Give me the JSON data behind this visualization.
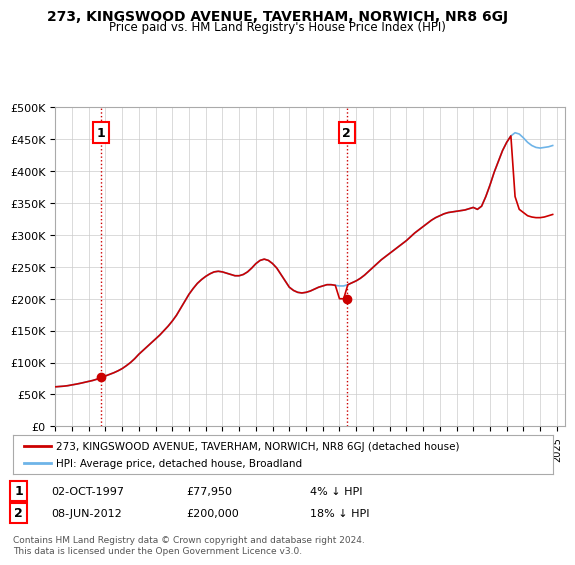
{
  "title": "273, KINGSWOOD AVENUE, TAVERHAM, NORWICH, NR8 6GJ",
  "subtitle": "Price paid vs. HM Land Registry's House Price Index (HPI)",
  "ylabel_ticks": [
    "£0",
    "£50K",
    "£100K",
    "£150K",
    "£200K",
    "£250K",
    "£300K",
    "£350K",
    "£400K",
    "£450K",
    "£500K"
  ],
  "ytick_values": [
    0,
    50000,
    100000,
    150000,
    200000,
    250000,
    300000,
    350000,
    400000,
    450000,
    500000
  ],
  "ylim": [
    0,
    500000
  ],
  "xlim_start": 1995.0,
  "xlim_end": 2025.5,
  "sale1_x": 1997.75,
  "sale1_y": 77950,
  "sale1_label": "1",
  "sale1_date": "02-OCT-1997",
  "sale1_price": "£77,950",
  "sale1_hpi": "4% ↓ HPI",
  "sale2_x": 2012.44,
  "sale2_y": 200000,
  "sale2_label": "2",
  "sale2_date": "08-JUN-2012",
  "sale2_price": "£200,000",
  "sale2_hpi": "18% ↓ HPI",
  "hpi_color": "#6eb4e8",
  "sale_color": "#cc0000",
  "vline_color": "#cc0000",
  "vline_style": ":",
  "grid_color": "#cccccc",
  "background_color": "#ffffff",
  "legend_sale_label": "273, KINGSWOOD AVENUE, TAVERHAM, NORWICH, NR8 6GJ (detached house)",
  "legend_hpi_label": "HPI: Average price, detached house, Broadland",
  "footer": "Contains HM Land Registry data © Crown copyright and database right 2024.\nThis data is licensed under the Open Government Licence v3.0.",
  "hpi_data_x": [
    1995.0,
    1995.25,
    1995.5,
    1995.75,
    1996.0,
    1996.25,
    1996.5,
    1996.75,
    1997.0,
    1997.25,
    1997.5,
    1997.75,
    1998.0,
    1998.25,
    1998.5,
    1998.75,
    1999.0,
    1999.25,
    1999.5,
    1999.75,
    2000.0,
    2000.25,
    2000.5,
    2000.75,
    2001.0,
    2001.25,
    2001.5,
    2001.75,
    2002.0,
    2002.25,
    2002.5,
    2002.75,
    2003.0,
    2003.25,
    2003.5,
    2003.75,
    2004.0,
    2004.25,
    2004.5,
    2004.75,
    2005.0,
    2005.25,
    2005.5,
    2005.75,
    2006.0,
    2006.25,
    2006.5,
    2006.75,
    2007.0,
    2007.25,
    2007.5,
    2007.75,
    2008.0,
    2008.25,
    2008.5,
    2008.75,
    2009.0,
    2009.25,
    2009.5,
    2009.75,
    2010.0,
    2010.25,
    2010.5,
    2010.75,
    2011.0,
    2011.25,
    2011.5,
    2011.75,
    2012.0,
    2012.25,
    2012.5,
    2012.75,
    2013.0,
    2013.25,
    2013.5,
    2013.75,
    2014.0,
    2014.25,
    2014.5,
    2014.75,
    2015.0,
    2015.25,
    2015.5,
    2015.75,
    2016.0,
    2016.25,
    2016.5,
    2016.75,
    2017.0,
    2017.25,
    2017.5,
    2017.75,
    2018.0,
    2018.25,
    2018.5,
    2018.75,
    2019.0,
    2019.25,
    2019.5,
    2019.75,
    2020.0,
    2020.25,
    2020.5,
    2020.75,
    2021.0,
    2021.25,
    2021.5,
    2021.75,
    2022.0,
    2022.25,
    2022.5,
    2022.75,
    2023.0,
    2023.25,
    2023.5,
    2023.75,
    2024.0,
    2024.25,
    2024.5,
    2024.75
  ],
  "hpi_data_y": [
    62000,
    62500,
    63000,
    63800,
    65000,
    66200,
    67500,
    69000,
    70500,
    72000,
    74000,
    76500,
    79000,
    81500,
    84000,
    87000,
    90500,
    95000,
    100000,
    106000,
    113000,
    119000,
    125000,
    131000,
    137000,
    143000,
    150000,
    157000,
    165000,
    174000,
    185000,
    196000,
    207000,
    216000,
    224000,
    230000,
    235000,
    239000,
    242000,
    243000,
    242000,
    240000,
    238000,
    236000,
    236000,
    238000,
    242000,
    248000,
    255000,
    260000,
    262000,
    260000,
    255000,
    248000,
    238000,
    228000,
    218000,
    213000,
    210000,
    209000,
    210000,
    212000,
    215000,
    218000,
    220000,
    222000,
    222000,
    221000,
    220000,
    220000,
    222000,
    225000,
    228000,
    232000,
    237000,
    243000,
    249000,
    255000,
    261000,
    266000,
    271000,
    276000,
    281000,
    286000,
    291000,
    297000,
    303000,
    308000,
    313000,
    318000,
    323000,
    327000,
    330000,
    333000,
    335000,
    336000,
    337000,
    338000,
    339000,
    341000,
    343000,
    340000,
    345000,
    360000,
    378000,
    398000,
    415000,
    432000,
    445000,
    455000,
    460000,
    458000,
    452000,
    445000,
    440000,
    437000,
    436000,
    437000,
    438000,
    440000
  ],
  "sale_data_x": [
    1995.0,
    1995.25,
    1995.5,
    1995.75,
    1996.0,
    1996.25,
    1996.5,
    1996.75,
    1997.0,
    1997.25,
    1997.5,
    1997.75,
    1998.0,
    1998.25,
    1998.5,
    1998.75,
    1999.0,
    1999.25,
    1999.5,
    1999.75,
    2000.0,
    2000.25,
    2000.5,
    2000.75,
    2001.0,
    2001.25,
    2001.5,
    2001.75,
    2002.0,
    2002.25,
    2002.5,
    2002.75,
    2003.0,
    2003.25,
    2003.5,
    2003.75,
    2004.0,
    2004.25,
    2004.5,
    2004.75,
    2005.0,
    2005.25,
    2005.5,
    2005.75,
    2006.0,
    2006.25,
    2006.5,
    2006.75,
    2007.0,
    2007.25,
    2007.5,
    2007.75,
    2008.0,
    2008.25,
    2008.5,
    2008.75,
    2009.0,
    2009.25,
    2009.5,
    2009.75,
    2010.0,
    2010.25,
    2010.5,
    2010.75,
    2011.0,
    2011.25,
    2011.5,
    2011.75,
    2012.0,
    2012.25,
    2012.5,
    2012.75,
    2013.0,
    2013.25,
    2013.5,
    2013.75,
    2014.0,
    2014.25,
    2014.5,
    2014.75,
    2015.0,
    2015.25,
    2015.5,
    2015.75,
    2016.0,
    2016.25,
    2016.5,
    2016.75,
    2017.0,
    2017.25,
    2017.5,
    2017.75,
    2018.0,
    2018.25,
    2018.5,
    2018.75,
    2019.0,
    2019.25,
    2019.5,
    2019.75,
    2020.0,
    2020.25,
    2020.5,
    2020.75,
    2021.0,
    2021.25,
    2021.5,
    2021.75,
    2022.0,
    2022.25,
    2022.5,
    2022.75,
    2023.0,
    2023.25,
    2023.5,
    2023.75,
    2024.0,
    2024.25,
    2024.5,
    2024.75
  ],
  "sale_data_y": [
    62000,
    62500,
    63000,
    63800,
    65000,
    66200,
    67500,
    69000,
    70500,
    72000,
    74000,
    77950,
    79000,
    81500,
    84000,
    87000,
    90500,
    95000,
    100000,
    106000,
    113000,
    119000,
    125000,
    131000,
    137000,
    143000,
    150000,
    157000,
    165000,
    174000,
    185000,
    196000,
    207000,
    216000,
    224000,
    230000,
    235000,
    239000,
    242000,
    243000,
    242000,
    240000,
    238000,
    236000,
    236000,
    238000,
    242000,
    248000,
    255000,
    260000,
    262000,
    260000,
    255000,
    248000,
    238000,
    228000,
    218000,
    213000,
    210000,
    209000,
    210000,
    212000,
    215000,
    218000,
    220000,
    222000,
    222000,
    221000,
    200000,
    200000,
    222000,
    225000,
    228000,
    232000,
    237000,
    243000,
    249000,
    255000,
    261000,
    266000,
    271000,
    276000,
    281000,
    286000,
    291000,
    297000,
    303000,
    308000,
    313000,
    318000,
    323000,
    327000,
    330000,
    333000,
    335000,
    336000,
    337000,
    338000,
    339000,
    341000,
    343000,
    340000,
    345000,
    360000,
    378000,
    398000,
    415000,
    432000,
    445000,
    455000,
    360000,
    340000,
    335000,
    330000,
    328000,
    327000,
    327000,
    328000,
    330000,
    332000
  ]
}
